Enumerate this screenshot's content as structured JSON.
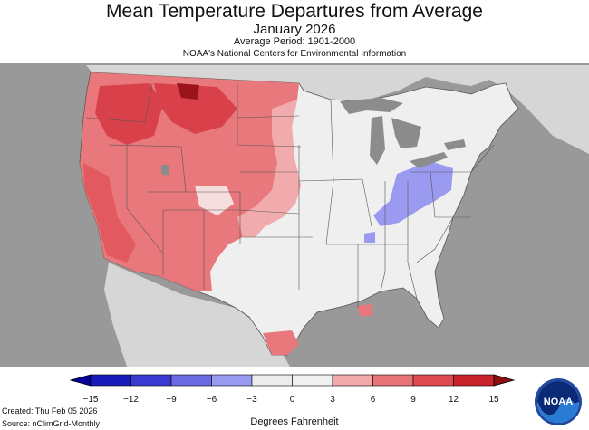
{
  "title": "Mean Temperature Departures from Average",
  "subtitle": "January 2026",
  "period": "Average Period: 1901-2000",
  "agency": "NOAA's National Centers for Environmental Information",
  "legend": {
    "ticks": [
      "−15",
      "−12",
      "−9",
      "−6",
      "−3",
      "0",
      "3",
      "6",
      "9",
      "12",
      "15"
    ],
    "colors": [
      "#1a1ab8",
      "#3a3ad0",
      "#6a6ae2",
      "#9a9af0",
      "#ececec",
      "#f0f0f0",
      "#f1a9ab",
      "#e87477",
      "#de4a50",
      "#c8222c"
    ],
    "low_end_color": "#05059a",
    "high_end_color": "#8c0d12",
    "units": "Degrees Fahrenheit"
  },
  "footer": {
    "created": "Created: Thu Feb 05 2026",
    "source": "Source: nClimGrid-Monthly"
  },
  "logo": {
    "text": "NOAA",
    "icon": "noaa-logo-icon"
  },
  "map": {
    "background_color": "#999999",
    "land_color": "#d6d6d6",
    "lakes_color": "#8c8c8c"
  }
}
